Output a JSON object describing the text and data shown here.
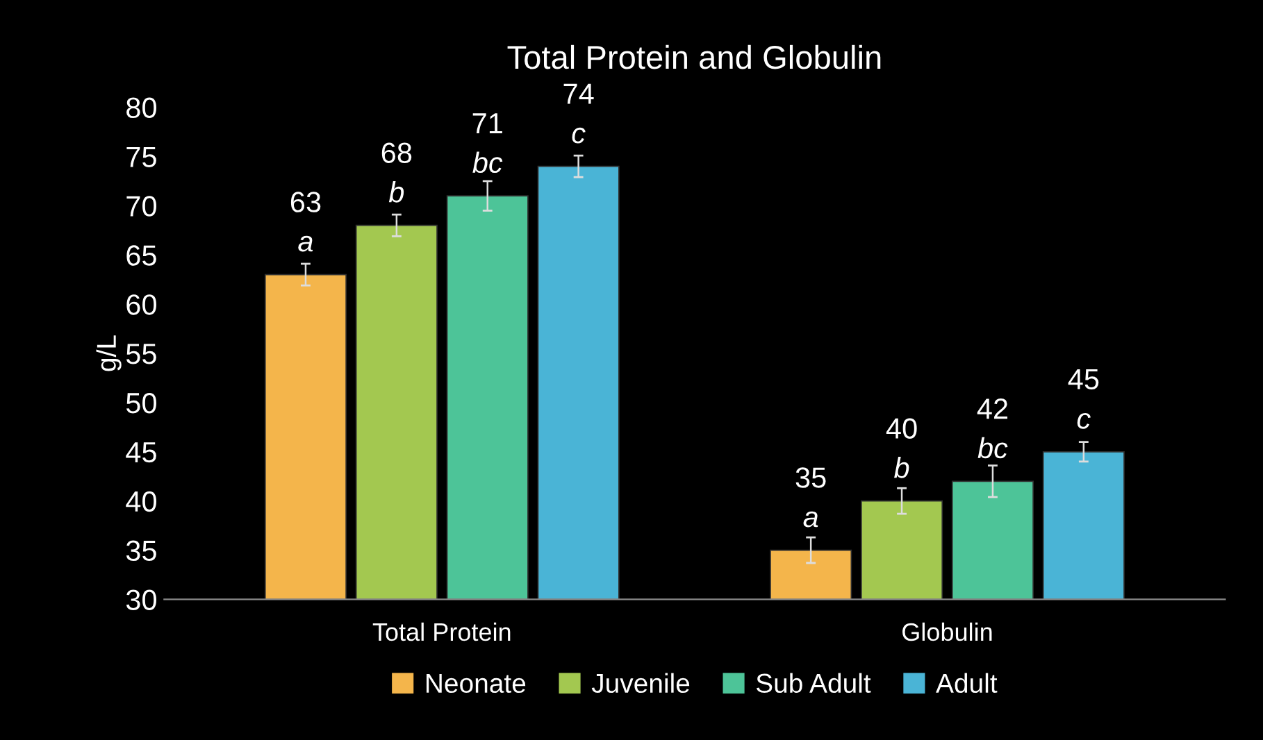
{
  "chart_data": {
    "type": "bar",
    "title": "Total Protein and Globulin",
    "ylabel": "g/L",
    "categories": [
      "Total Protein",
      "Globulin"
    ],
    "series": [
      {
        "name": "Neonate",
        "color": "#f4b54b",
        "values": [
          63,
          35
        ],
        "errors": [
          1.1,
          1.3
        ]
      },
      {
        "name": "Juvenile",
        "color": "#a3c850",
        "values": [
          68,
          40
        ],
        "errors": [
          1.1,
          1.3
        ]
      },
      {
        "name": "Sub Adult",
        "color": "#4dc498",
        "values": [
          71,
          42
        ],
        "errors": [
          1.5,
          1.6
        ]
      },
      {
        "name": "Adult",
        "color": "#4ab4d6",
        "values": [
          74,
          45
        ],
        "errors": [
          1.1,
          1.0
        ]
      }
    ],
    "ylim": [
      30,
      80
    ],
    "yticks": [
      30,
      35,
      40,
      45,
      50,
      55,
      60,
      65,
      70,
      75,
      80
    ],
    "data_labels": true,
    "grid": false,
    "legend": "bottom",
    "annotations": [
      "a",
      "a",
      "b",
      "b",
      "bc",
      "bc",
      "c",
      "c"
    ]
  }
}
